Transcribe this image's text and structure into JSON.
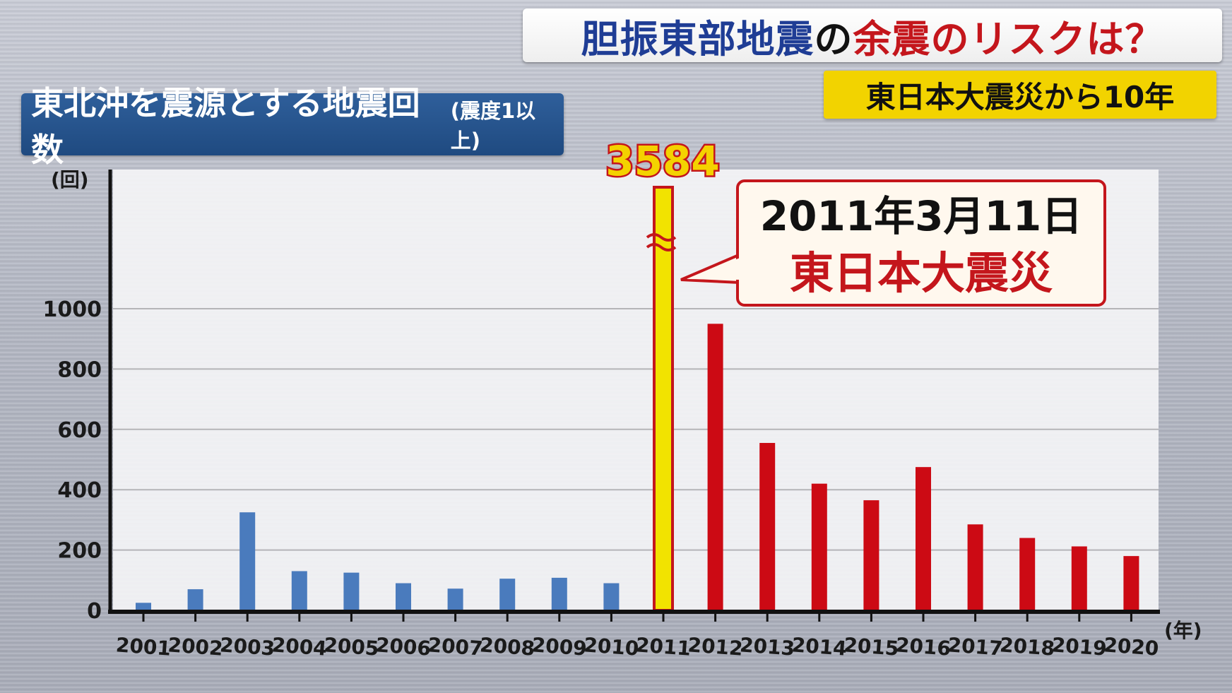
{
  "headline": {
    "part1": "胆振東部地震",
    "part2": "の",
    "part3": "余震",
    "part4": "のリスクは？"
  },
  "subheadline": "東日本大震災から10年",
  "colors": {
    "bar_default": "#4a7bbd",
    "bar_post": "#cc0a14",
    "bar_highlight": "#f2e300",
    "highlight_outline": "#c4161c",
    "title_bg": "#2a5690"
  },
  "chart_data": {
    "type": "bar",
    "title": "東北沖を震源とする地震回数",
    "title_note": "(震度1以上)",
    "ylabel": "(回)",
    "xlabel": "(年)",
    "yticks": [
      "0",
      "200",
      "400",
      "600",
      "800",
      "1000"
    ],
    "ylim": [
      0,
      1000
    ],
    "axis_break": true,
    "grid": true,
    "categories": [
      "2001",
      "2002",
      "2003",
      "2004",
      "2005",
      "2006",
      "2007",
      "2008",
      "2009",
      "2010",
      "2011",
      "2012",
      "2013",
      "2014",
      "2015",
      "2016",
      "2017",
      "2018",
      "2019",
      "2020"
    ],
    "values": [
      25,
      70,
      325,
      130,
      125,
      90,
      72,
      105,
      108,
      90,
      3584,
      950,
      555,
      420,
      365,
      475,
      285,
      240,
      212,
      180
    ],
    "highlight_index": 10,
    "highlight_label": "3584",
    "callout": {
      "line1": "2011年3月11日",
      "line2": "東日本大震災"
    }
  }
}
